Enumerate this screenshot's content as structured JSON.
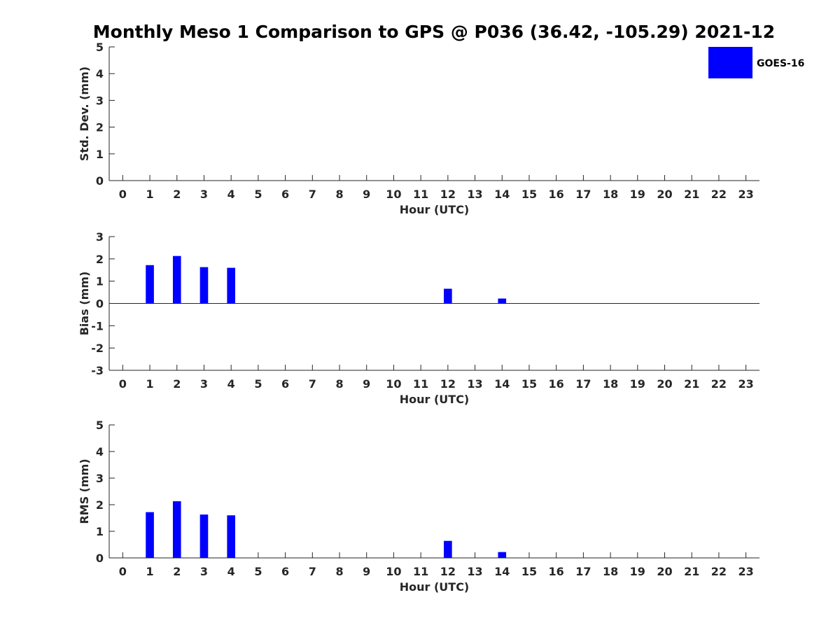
{
  "title": "Monthly Meso 1 Comparison to GPS @ P036 (36.42, -105.29) 2021-12",
  "legend": {
    "label": "GOES-16",
    "color": "#0000ff",
    "placement": "top-right"
  },
  "chart_data": [
    {
      "type": "bar",
      "ylabel": "Std. Dev. (mm)",
      "xlabel": "Hour (UTC)",
      "ylim": [
        0,
        5
      ],
      "yticks": [
        0,
        1,
        2,
        3,
        4,
        5
      ],
      "x": [
        0,
        1,
        2,
        3,
        4,
        5,
        6,
        7,
        8,
        9,
        10,
        11,
        12,
        13,
        14,
        15,
        16,
        17,
        18,
        19,
        20,
        21,
        22,
        23
      ],
      "xtick_labels": [
        "0",
        "1",
        "2",
        "3",
        "4",
        "5",
        "6",
        "7",
        "8",
        "9",
        "10",
        "11",
        "12",
        "13",
        "14",
        "15",
        "16",
        "17",
        "18",
        "19",
        "20",
        "21",
        "22",
        "23"
      ],
      "series": [
        {
          "name": "GOES-16",
          "color": "#0000ff",
          "values": [
            null,
            null,
            null,
            null,
            null,
            null,
            null,
            null,
            null,
            null,
            null,
            null,
            null,
            null,
            null,
            null,
            null,
            null,
            null,
            null,
            null,
            null,
            null,
            null
          ]
        }
      ]
    },
    {
      "type": "bar",
      "ylabel": "Bias (mm)",
      "xlabel": "Hour (UTC)",
      "ylim": [
        -3,
        3
      ],
      "yticks": [
        -3,
        -2,
        -1,
        0,
        1,
        2,
        3
      ],
      "zero_line": true,
      "x": [
        0,
        1,
        2,
        3,
        4,
        5,
        6,
        7,
        8,
        9,
        10,
        11,
        12,
        13,
        14,
        15,
        16,
        17,
        18,
        19,
        20,
        21,
        22,
        23
      ],
      "xtick_labels": [
        "0",
        "1",
        "2",
        "3",
        "4",
        "5",
        "6",
        "7",
        "8",
        "9",
        "10",
        "11",
        "12",
        "13",
        "14",
        "15",
        "16",
        "17",
        "18",
        "19",
        "20",
        "21",
        "22",
        "23"
      ],
      "series": [
        {
          "name": "GOES-16",
          "color": "#0000ff",
          "values": [
            null,
            1.72,
            2.13,
            1.63,
            1.6,
            null,
            null,
            null,
            null,
            null,
            null,
            null,
            0.66,
            null,
            0.22,
            null,
            null,
            null,
            null,
            null,
            null,
            null,
            null,
            null
          ]
        }
      ]
    },
    {
      "type": "bar",
      "ylabel": "RMS (mm)",
      "xlabel": "Hour (UTC)",
      "ylim": [
        0,
        5
      ],
      "yticks": [
        0,
        1,
        2,
        3,
        4,
        5
      ],
      "x": [
        0,
        1,
        2,
        3,
        4,
        5,
        6,
        7,
        8,
        9,
        10,
        11,
        12,
        13,
        14,
        15,
        16,
        17,
        18,
        19,
        20,
        21,
        22,
        23
      ],
      "xtick_labels": [
        "0",
        "1",
        "2",
        "3",
        "4",
        "5",
        "6",
        "7",
        "8",
        "9",
        "10",
        "11",
        "12",
        "13",
        "14",
        "15",
        "16",
        "17",
        "18",
        "19",
        "20",
        "21",
        "22",
        "23"
      ],
      "series": [
        {
          "name": "GOES-16",
          "color": "#0000ff",
          "values": [
            null,
            1.72,
            2.13,
            1.63,
            1.6,
            null,
            null,
            null,
            null,
            null,
            null,
            null,
            0.64,
            null,
            0.22,
            null,
            null,
            null,
            null,
            null,
            null,
            null,
            null,
            null
          ]
        }
      ]
    }
  ]
}
